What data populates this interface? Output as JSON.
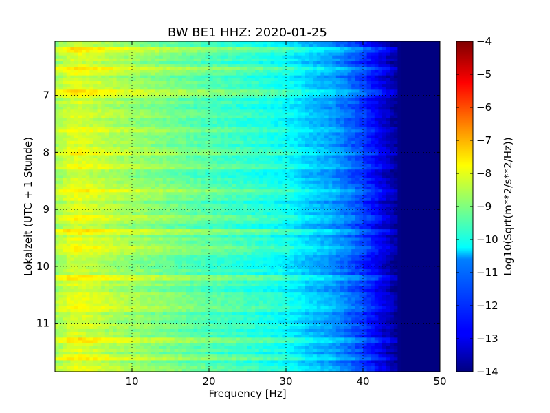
{
  "chart_data": {
    "type": "heatmap",
    "title": "BW BE1 HHZ: 2020-01-25",
    "xlabel": "Frequency [Hz]",
    "ylabel": "Lokalzeit (UTC + 1 Stunde)",
    "xlim": [
      0,
      50
    ],
    "ylim": [
      6.05,
      11.85
    ],
    "y_inverted": true,
    "xticks": [
      10,
      20,
      30,
      40,
      50
    ],
    "yticks": [
      7,
      8,
      9,
      10,
      11
    ],
    "grid": true,
    "colormap": "jet",
    "colorbar": {
      "label": "Log10(Sqrt(m**2/s**2/Hz))",
      "range": [
        -14,
        -4
      ],
      "ticks": [
        -4,
        -5,
        -6,
        -7,
        -8,
        -9,
        -10,
        -11,
        -12,
        -13,
        -14
      ]
    },
    "spectral_profile": {
      "frequency_hz": [
        0,
        2,
        3,
        5,
        8,
        12,
        16,
        20,
        25,
        30,
        33,
        36,
        38,
        40,
        42,
        43,
        44,
        45,
        46,
        50
      ],
      "level": [
        -8.7,
        -8.2,
        -8.1,
        -8.3,
        -8.6,
        -8.9,
        -9.2,
        -9.5,
        -9.8,
        -10.2,
        -10.8,
        -11.2,
        -11.7,
        -12.2,
        -12.9,
        -13.3,
        -13.7,
        -14.0,
        -14.0,
        -14.0
      ]
    },
    "bright_bands_hours": [
      6.2,
      6.55,
      6.95,
      7.6,
      8.0,
      8.25,
      8.7,
      9.15,
      9.4,
      9.7,
      10.2,
      10.75,
      11.3,
      11.6
    ]
  }
}
